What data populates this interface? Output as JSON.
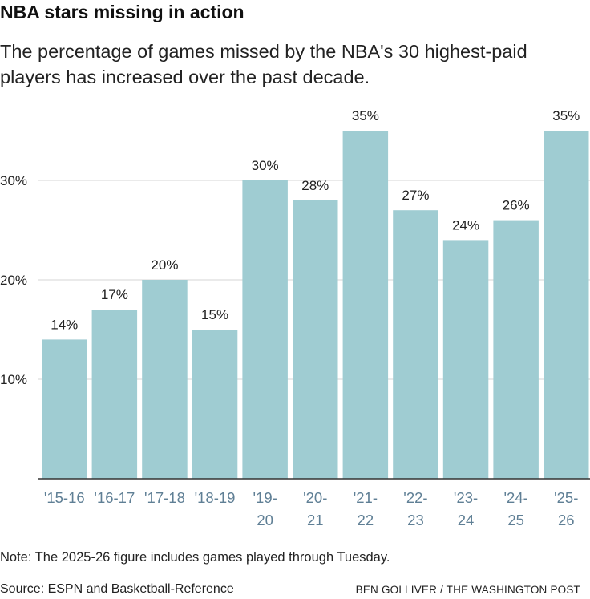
{
  "title": "NBA stars missing in action",
  "subtitle": "The percentage of games missed by the NBA's 30 highest-paid players has increased over the past decade.",
  "note": "Note: The 2025-26 figure includes games played through Tuesday.",
  "source": "Source: ESPN and Basketball-Reference",
  "credit": "BEN GOLLIVER / THE WASHINGTON POST",
  "colors": {
    "bar": "#9fccd2",
    "tick_label": "#5f7f95",
    "grid": "#dddddd",
    "axis": "#333333"
  },
  "chart_data": {
    "type": "bar",
    "categories": [
      "'15-16",
      "'16-17",
      "'17-18",
      "'18-19",
      "'19-20",
      "'20-21",
      "'21-22",
      "'22-23",
      "'23-24",
      "'24-25",
      "'25-26"
    ],
    "values": [
      14,
      17,
      20,
      15,
      30,
      28,
      35,
      27,
      24,
      26,
      35
    ],
    "data_labels": [
      "14%",
      "17%",
      "20%",
      "15%",
      "30%",
      "28%",
      "35%",
      "27%",
      "24%",
      "26%",
      "35%"
    ],
    "ylim": [
      0,
      35
    ],
    "yticks": [
      10,
      20,
      30
    ],
    "ytick_labels": [
      "10%",
      "20%",
      "30%"
    ],
    "grid": true,
    "xlabel": "",
    "ylabel": ""
  }
}
